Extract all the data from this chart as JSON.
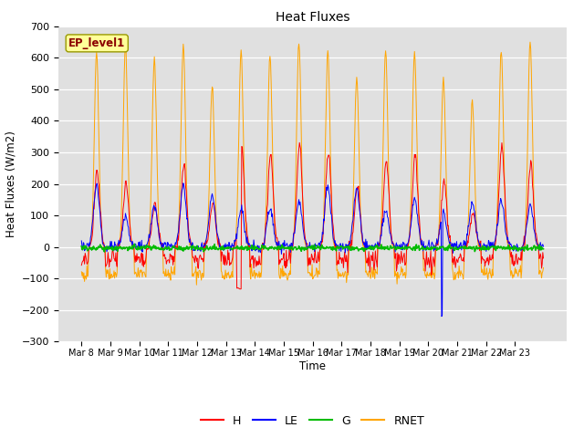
{
  "title": "Heat Fluxes",
  "ylabel": "Heat Fluxes (W/m2)",
  "xlabel": "Time",
  "ylim": [
    -300,
    700
  ],
  "yticks": [
    -300,
    -200,
    -100,
    0,
    100,
    200,
    300,
    400,
    500,
    600,
    700
  ],
  "colors": {
    "H": "#ff0000",
    "LE": "#0000ff",
    "G": "#00bb00",
    "RNET": "#ffa500"
  },
  "background_color": "#e0e0e0",
  "legend_label": "EP_level1",
  "n_days": 16,
  "start_day": 8,
  "points_per_day": 48
}
